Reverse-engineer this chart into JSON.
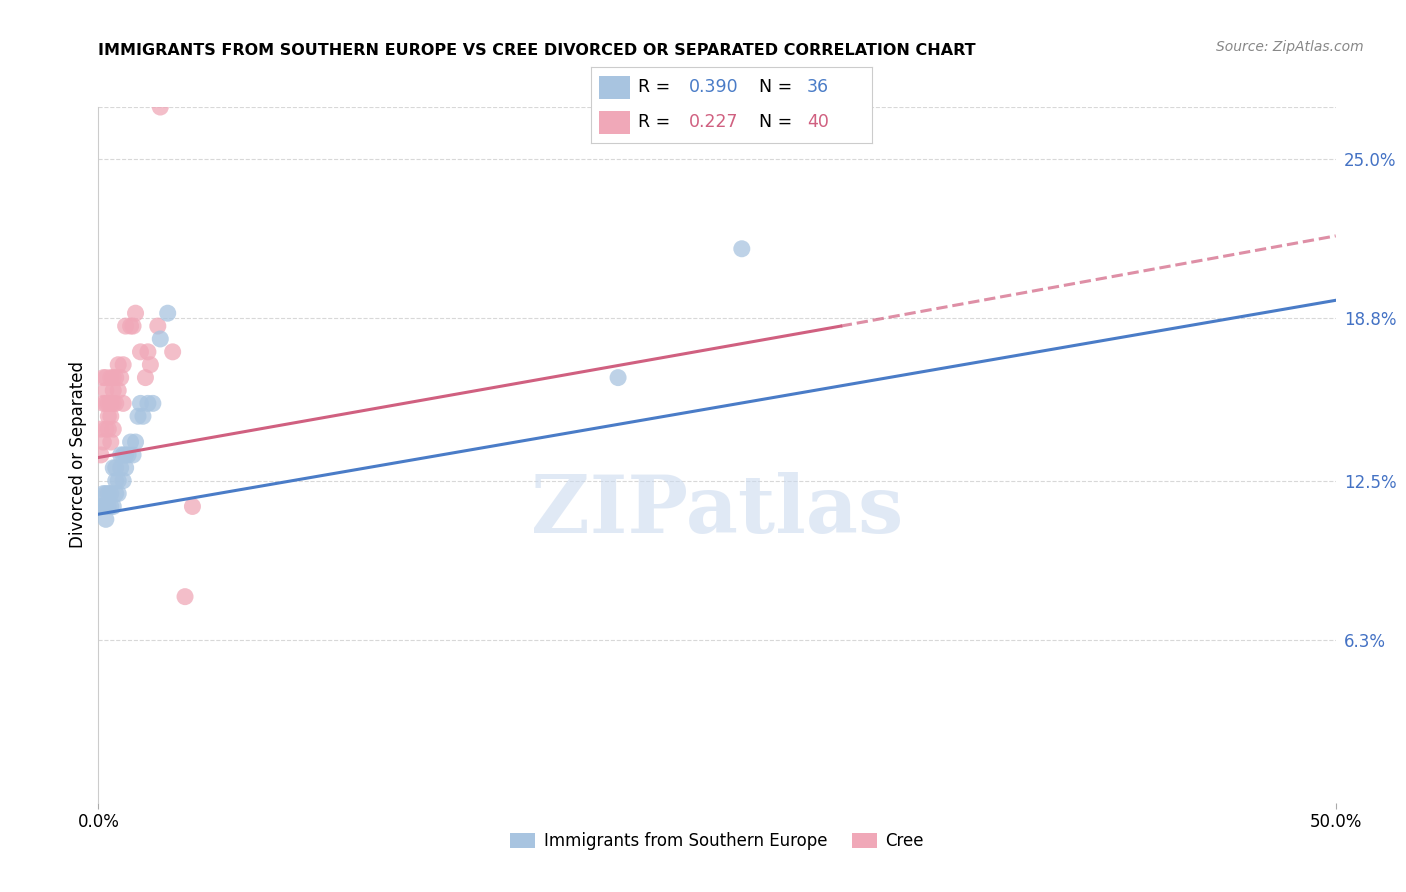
{
  "title": "IMMIGRANTS FROM SOUTHERN EUROPE VS CREE DIVORCED OR SEPARATED CORRELATION CHART",
  "source": "Source: ZipAtlas.com",
  "ylabel": "Divorced or Separated",
  "legend_label1": "Immigrants from Southern Europe",
  "legend_label2": "Cree",
  "legend_r1": "0.390",
  "legend_n1": "36",
  "legend_r2": "0.227",
  "legend_n2": "40",
  "blue_color": "#a8c4e0",
  "pink_color": "#f0a8b8",
  "blue_line_color": "#4a7cc7",
  "pink_line_color": "#d06080",
  "blue_scatter_x": [
    0.001,
    0.002,
    0.002,
    0.003,
    0.003,
    0.003,
    0.004,
    0.004,
    0.005,
    0.005,
    0.006,
    0.006,
    0.007,
    0.007,
    0.007,
    0.008,
    0.008,
    0.009,
    0.009,
    0.01,
    0.01,
    0.011,
    0.011,
    0.012,
    0.013,
    0.014,
    0.015,
    0.016,
    0.017,
    0.018,
    0.02,
    0.022,
    0.025,
    0.028,
    0.21,
    0.26
  ],
  "blue_scatter_y": [
    0.115,
    0.115,
    0.12,
    0.11,
    0.115,
    0.12,
    0.115,
    0.12,
    0.115,
    0.12,
    0.115,
    0.13,
    0.12,
    0.125,
    0.13,
    0.12,
    0.125,
    0.13,
    0.135,
    0.125,
    0.135,
    0.13,
    0.135,
    0.135,
    0.14,
    0.135,
    0.14,
    0.15,
    0.155,
    0.15,
    0.155,
    0.155,
    0.18,
    0.19,
    0.165,
    0.215
  ],
  "pink_scatter_x": [
    0.001,
    0.001,
    0.002,
    0.002,
    0.002,
    0.003,
    0.003,
    0.003,
    0.003,
    0.004,
    0.004,
    0.004,
    0.005,
    0.005,
    0.005,
    0.005,
    0.006,
    0.006,
    0.006,
    0.006,
    0.007,
    0.007,
    0.008,
    0.008,
    0.009,
    0.01,
    0.01,
    0.011,
    0.013,
    0.014,
    0.015,
    0.017,
    0.019,
    0.02,
    0.021,
    0.024,
    0.025,
    0.03,
    0.035,
    0.038
  ],
  "pink_scatter_y": [
    0.135,
    0.145,
    0.14,
    0.155,
    0.165,
    0.145,
    0.155,
    0.16,
    0.165,
    0.145,
    0.15,
    0.155,
    0.14,
    0.15,
    0.155,
    0.165,
    0.145,
    0.155,
    0.16,
    0.165,
    0.155,
    0.165,
    0.16,
    0.17,
    0.165,
    0.155,
    0.17,
    0.185,
    0.185,
    0.185,
    0.19,
    0.175,
    0.165,
    0.175,
    0.17,
    0.185,
    0.27,
    0.175,
    0.08,
    0.115
  ],
  "blue_line_x0": 0.0,
  "blue_line_y0": 0.112,
  "blue_line_x1": 0.5,
  "blue_line_y1": 0.195,
  "pink_line_x0": 0.0,
  "pink_line_y0": 0.134,
  "pink_line_solid_end_x": 0.3,
  "pink_line_solid_end_y": 0.185,
  "pink_line_x1": 0.5,
  "pink_line_y1": 0.22,
  "xlim": [
    0.0,
    0.5
  ],
  "ylim": [
    0.0,
    0.27
  ],
  "ytick_vals": [
    0.063,
    0.125,
    0.188,
    0.25
  ],
  "ytick_labels": [
    "6.3%",
    "12.5%",
    "18.8%",
    "25.0%"
  ],
  "xtick_vals": [
    0.0,
    0.5
  ],
  "xtick_labels": [
    "0.0%",
    "50.0%"
  ],
  "watermark": "ZIPatlas",
  "background_color": "#ffffff",
  "grid_color": "#d8d8d8"
}
